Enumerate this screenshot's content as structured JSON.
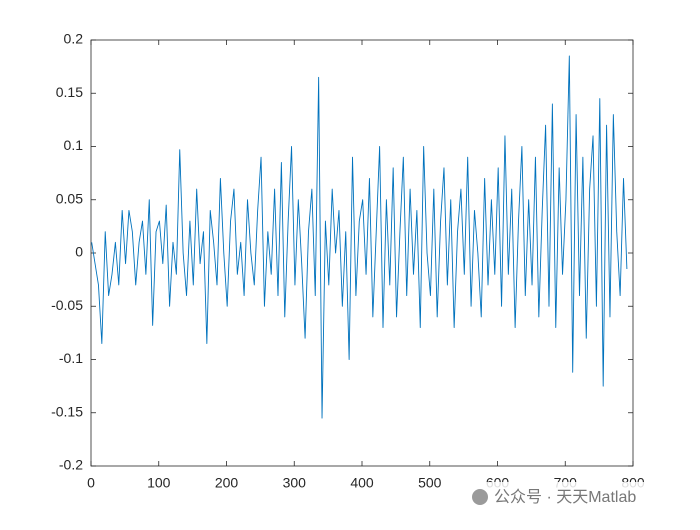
{
  "chart_data": {
    "type": "line",
    "x": [
      1,
      6,
      11,
      16,
      21,
      26,
      31,
      36,
      41,
      46,
      51,
      56,
      61,
      66,
      71,
      76,
      81,
      86,
      91,
      96,
      101,
      106,
      111,
      116,
      121,
      126,
      131,
      136,
      141,
      146,
      151,
      156,
      161,
      166,
      171,
      176,
      181,
      186,
      191,
      196,
      201,
      206,
      211,
      216,
      221,
      226,
      231,
      236,
      241,
      246,
      251,
      256,
      261,
      266,
      271,
      276,
      281,
      286,
      291,
      296,
      301,
      306,
      311,
      316,
      321,
      326,
      331,
      336,
      341,
      346,
      351,
      356,
      361,
      366,
      371,
      376,
      381,
      386,
      391,
      396,
      401,
      406,
      411,
      416,
      421,
      426,
      431,
      436,
      441,
      446,
      451,
      456,
      461,
      466,
      471,
      476,
      481,
      486,
      491,
      496,
      501,
      506,
      511,
      516,
      521,
      526,
      531,
      536,
      541,
      546,
      551,
      556,
      561,
      566,
      571,
      576,
      581,
      586,
      591,
      596,
      601,
      606,
      611,
      616,
      621,
      626,
      631,
      636,
      641,
      646,
      651,
      656,
      661,
      666,
      671,
      676,
      681,
      686,
      691,
      696,
      701,
      706,
      711,
      716,
      721,
      726,
      731,
      736,
      741,
      746,
      751,
      756,
      761,
      766,
      771,
      776,
      781,
      786,
      791
    ],
    "series": [
      {
        "color": "#0072BD",
        "values": [
          0.01,
          -0.01,
          -0.03,
          -0.085,
          0.02,
          -0.04,
          -0.02,
          0.01,
          -0.03,
          0.04,
          -0.01,
          0.04,
          0.02,
          -0.03,
          0.01,
          0.03,
          -0.02,
          0.05,
          -0.068,
          0.02,
          0.03,
          -0.01,
          0.045,
          -0.05,
          0.01,
          -0.02,
          0.097,
          0.0,
          -0.04,
          0.03,
          -0.03,
          0.06,
          -0.01,
          0.02,
          -0.085,
          0.04,
          0.01,
          -0.03,
          0.07,
          0.0,
          -0.05,
          0.03,
          0.06,
          -0.02,
          0.01,
          -0.04,
          0.05,
          0.0,
          -0.03,
          0.04,
          0.09,
          -0.05,
          0.02,
          -0.02,
          0.06,
          -0.04,
          0.085,
          -0.06,
          0.03,
          0.1,
          -0.03,
          0.05,
          -0.01,
          -0.08,
          0.02,
          0.06,
          -0.04,
          0.165,
          -0.155,
          0.03,
          -0.03,
          0.06,
          0.0,
          0.04,
          -0.05,
          0.02,
          -0.1,
          0.09,
          -0.04,
          0.03,
          0.05,
          -0.02,
          0.07,
          -0.06,
          0.02,
          0.1,
          -0.07,
          0.05,
          -0.03,
          0.08,
          -0.06,
          0.02,
          0.09,
          -0.04,
          0.06,
          -0.02,
          0.04,
          -0.07,
          0.1,
          0.0,
          -0.04,
          0.06,
          -0.06,
          0.03,
          0.08,
          -0.03,
          0.05,
          -0.07,
          0.02,
          0.06,
          -0.02,
          0.09,
          -0.05,
          0.04,
          0.0,
          -0.06,
          0.07,
          -0.03,
          0.05,
          -0.02,
          0.08,
          -0.05,
          0.11,
          -0.02,
          0.06,
          -0.07,
          0.03,
          0.1,
          -0.04,
          0.05,
          -0.03,
          0.09,
          -0.06,
          0.04,
          0.12,
          -0.05,
          0.14,
          -0.07,
          0.08,
          -0.02,
          0.05,
          0.185,
          -0.112,
          0.13,
          -0.04,
          0.09,
          -0.08,
          0.06,
          0.11,
          -0.05,
          0.145,
          -0.125,
          0.12,
          -0.06,
          0.13,
          0.02,
          -0.04,
          0.07,
          -0.015
        ]
      }
    ],
    "xlim": [
      0,
      800
    ],
    "xticks": [
      0,
      100,
      200,
      300,
      400,
      500,
      600,
      700,
      800
    ],
    "ylim": [
      -0.2,
      0.2
    ],
    "yticks": [
      -0.2,
      -0.15,
      -0.1,
      -0.05,
      0,
      0.05,
      0.1,
      0.15,
      0.2
    ],
    "watermark": "公众号 · 天天Matlab"
  }
}
